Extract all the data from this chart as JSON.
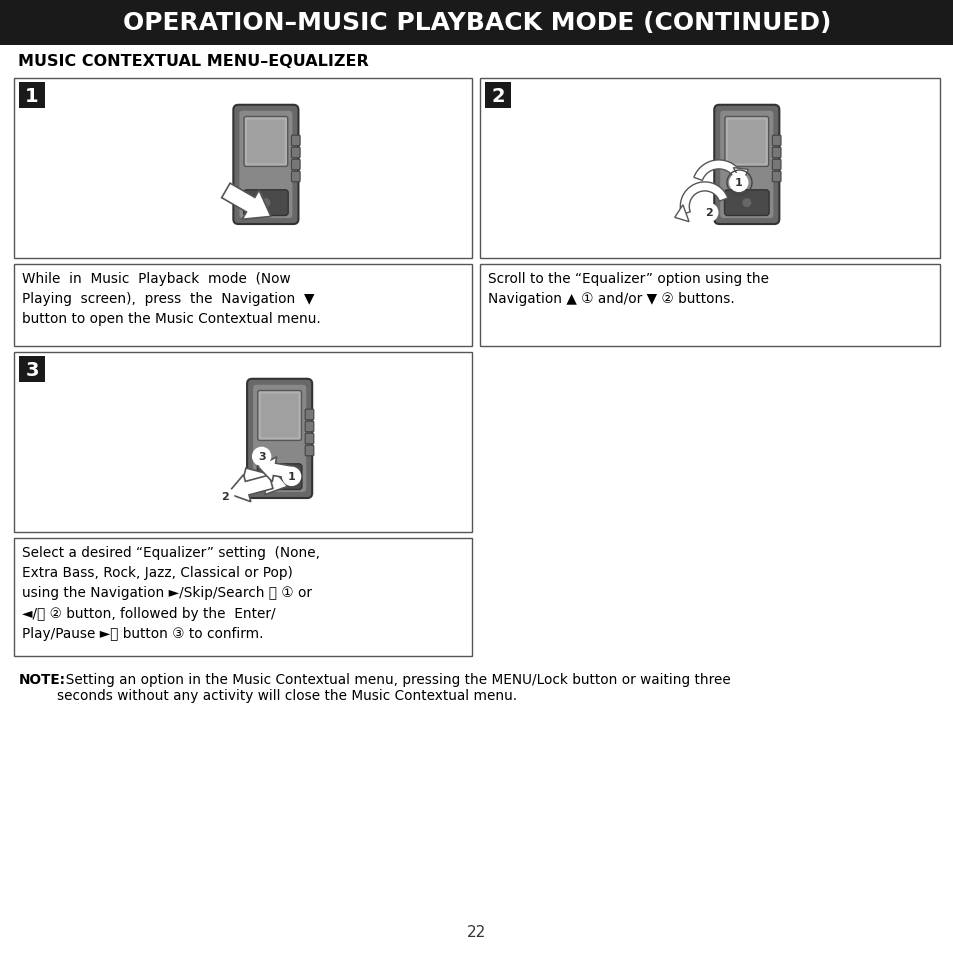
{
  "title": "OPERATION–MUSIC PLAYBACK MODE (CONTINUED)",
  "title_bg": "#1a1a1a",
  "title_color": "#ffffff",
  "section_title": "MUSIC CONTEXTUAL MENU–EQUALIZER",
  "page_number": "22",
  "bg_color": "#ffffff",
  "border_color": "#555555",
  "text1_line1": "While  in  Music  Playback  mode  (Now",
  "text1_line2": "Playing  screen),  press  the  Navigation  ▼",
  "text1_line3": "button to open the Music Contextual menu.",
  "text2_line1": "Scroll to the “Equalizer” option using the",
  "text2_line2": "Navigation ▲ ① and/or ▼ ② buttons.",
  "text3_line1": "Select a desired “Equalizer” setting  (None,",
  "text3_line2": "Extra Bass, Rock, Jazz, Classical or Pop)",
  "text3_line3": "using the Navigation ►/Skip/Search ⏭ ① or",
  "text3_line4": "◄/⏮ ② button, followed by the  Enter/",
  "text3_line5": "Play/Pause ►⏸ button ③ to confirm.",
  "note_bold": "NOTE:",
  "note_text": "  Setting an option in the Music Contextual menu, pressing the MENU/Lock button or waiting three\nseconds without any activity will close the Music Contextual menu."
}
